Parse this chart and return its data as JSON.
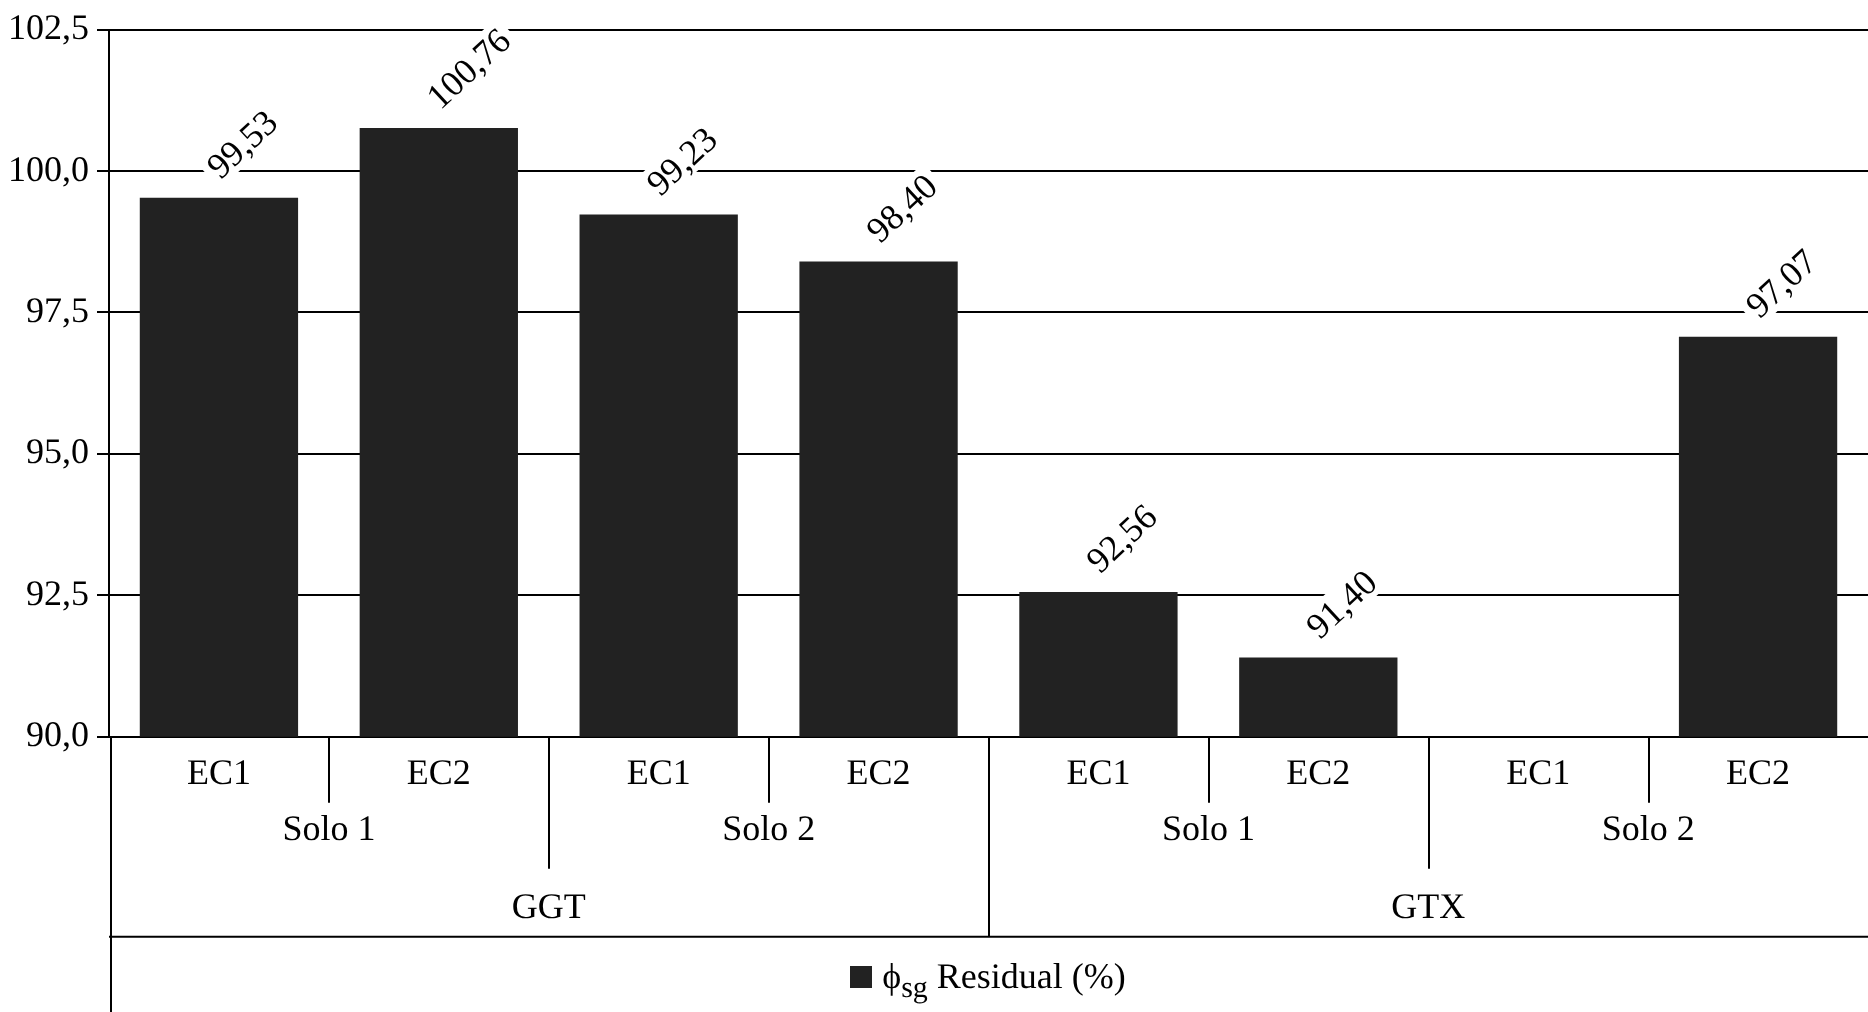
{
  "chart_data": {
    "type": "bar",
    "categories": [
      "EC1",
      "EC2",
      "EC1",
      "EC2",
      "EC1",
      "EC2",
      "EC1",
      "EC2"
    ],
    "series": [
      {
        "name": "ϕ$_{sg}$ Residual (%)",
        "color": "#222222",
        "values": [
          99.53,
          100.76,
          99.23,
          98.4,
          92.56,
          91.4,
          null,
          97.07
        ],
        "value_labels": [
          "99,53",
          "100,76",
          "99,23",
          "98,40",
          "92,56",
          "91,40",
          null,
          "97,07"
        ]
      }
    ],
    "annotations": [
      "Solo 1",
      "Solo 2",
      "Solo 1",
      "Solo 2",
      "GGT",
      "GTX"
    ],
    "ylim": [
      90,
      102.5
    ],
    "yticks": [
      {
        "value": 90,
        "label": "90,0"
      },
      {
        "value": 92.5,
        "label": "92,5"
      },
      {
        "value": 95,
        "label": "95,0"
      },
      {
        "value": 97.5,
        "label": "97,5"
      },
      {
        "value": 100,
        "label": "100,0"
      },
      {
        "value": 102.5,
        "label": "102,5"
      }
    ],
    "grid": "y",
    "legend": "bottom"
  }
}
